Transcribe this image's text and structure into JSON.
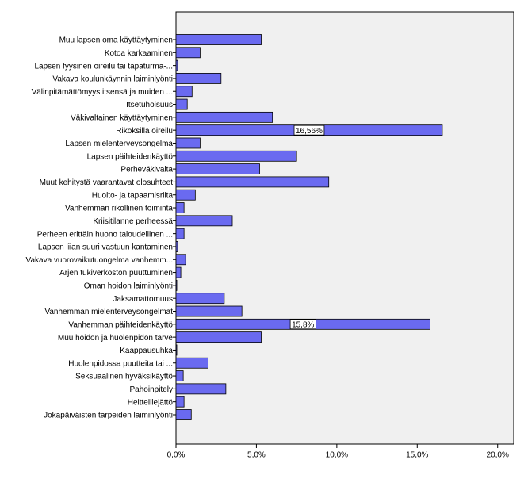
{
  "chart_data": {
    "type": "hbar",
    "color": "#6a6af0",
    "categories": [
      "Muu lapsen oma käyttäytyminen",
      "Kotoa karkaaminen",
      "Lapsen fyysinen oireilu tai tapaturma-...",
      "Vakava koulunkäynnin laiminlyönti",
      "Välinpitämättömyys itsensä ja muiden ...",
      "Itsetuhoisuus",
      "Väkivaltainen käyttäytyminen",
      "Rikoksilla oireilu",
      "Lapsen mielenterveysongelma",
      "Lapsen päihteidenkäyttö",
      "Perheväkivalta",
      "Muut kehitystä vaarantavat olosuhteet",
      "Huolto- ja tapaamisriita",
      "Vanhemman rikollinen toiminta",
      "Kriisitilanne perheessä",
      "Perheen erittäin huono taloudellinen ...",
      "Lapsen liian suuri vastuun kantaminen",
      "Vakava vuorovaikutuongelma vanhemm...",
      "Arjen tukiverkoston puuttuminen",
      "Oman hoidon laiminlyönti",
      "Jaksamattomuus",
      "Vanhemman mielenterveysongelmat",
      "Vanhemman päihteidenkäyttö",
      "Muu hoidon ja huolenpidon tarve",
      "Kaappausuhka",
      "Huolenpidossa puutteita tai ...",
      "Seksuaalinen hyväksikäyttö",
      "Pahoinpitely",
      "Heitteillejättö",
      "Jokapäiväisten tarpeiden laiminlyönti"
    ],
    "values": [
      5.3,
      1.5,
      0.1,
      2.8,
      1.0,
      0.7,
      6.0,
      16.56,
      1.5,
      7.5,
      5.2,
      9.5,
      1.2,
      0.5,
      3.5,
      0.5,
      0.1,
      0.6,
      0.3,
      0.05,
      3.0,
      4.1,
      15.8,
      5.3,
      0.05,
      2.0,
      0.45,
      3.1,
      0.5,
      0.95
    ],
    "value_labels": [
      null,
      null,
      null,
      null,
      null,
      null,
      null,
      "16,56%",
      null,
      null,
      null,
      null,
      null,
      null,
      null,
      null,
      null,
      null,
      null,
      null,
      null,
      null,
      "15,8%",
      null,
      null,
      null,
      null,
      null,
      null,
      null
    ],
    "xlim": [
      0,
      21
    ],
    "xticks": [
      {
        "value": 0,
        "label": "0,0%"
      },
      {
        "value": 5,
        "label": "5,0%"
      },
      {
        "value": 10,
        "label": "10,0%"
      },
      {
        "value": 15,
        "label": "15,0%"
      },
      {
        "value": 20,
        "label": "20,0%"
      }
    ]
  }
}
